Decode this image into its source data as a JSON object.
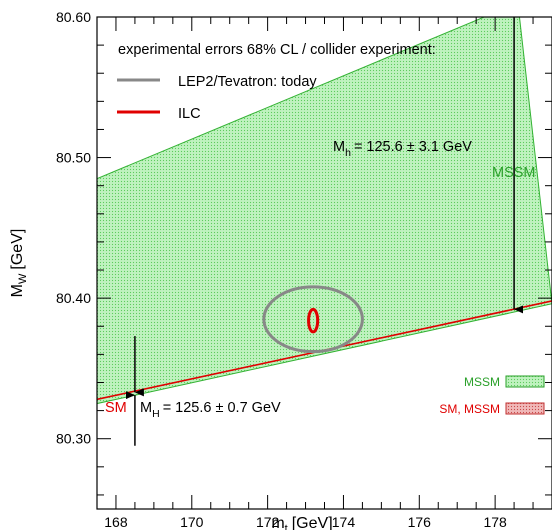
{
  "chart_data": {
    "type": "area",
    "xlabel": "m",
    "xlabel_sub": "t",
    "xlabel_unit": "[GeV]",
    "ylabel": "M",
    "ylabel_sub": "W",
    "ylabel_unit": "[GeV]",
    "xlim": [
      167.5,
      179.5
    ],
    "ylim": [
      80.25,
      80.6
    ],
    "x_ticks": [
      168,
      170,
      172,
      174,
      176,
      178
    ],
    "x_tick_labels": [
      "168",
      "170",
      "172",
      "174",
      "176",
      "178"
    ],
    "y_ticks": [
      80.3,
      80.4,
      80.5,
      80.6
    ],
    "y_tick_labels": [
      "80.30",
      "80.40",
      "80.50",
      "80.60"
    ],
    "grid": false,
    "legend_title": "experimental errors 68% CL / collider experiment:",
    "legend": [
      {
        "label": "LEP2/Tevatron: today",
        "color": "#808080"
      },
      {
        "label": "ILC",
        "color": "#e00000"
      }
    ],
    "band_legend": [
      {
        "label": "MSSM",
        "color": "#2aa02a",
        "fill": "#b8f0b8"
      },
      {
        "label": "SM, MSSM",
        "color": "#e00000",
        "fill": "#e8a0a0"
      }
    ],
    "mssm_band": {
      "upper": [
        [
          167.5,
          80.485
        ],
        [
          178.6,
          80.61
        ]
      ],
      "lower": [
        [
          167.5,
          80.325
        ],
        [
          179.5,
          80.396
        ]
      ]
    },
    "sm_line": [
      [
        167.5,
        80.328
      ],
      [
        179.5,
        80.398
      ]
    ],
    "ellipses": [
      {
        "name": "LEP2/Tevatron: today",
        "cx": 173.2,
        "cy": 80.385,
        "rx": 1.3,
        "ry": 0.023,
        "color": "#808080"
      },
      {
        "name": "ILC",
        "cx": 173.2,
        "cy": 80.384,
        "rx": 0.12,
        "ry": 0.008,
        "color": "#e00000"
      }
    ],
    "annotations": {
      "mssm_mh": "M",
      "mssm_mh_sub": "h",
      "mssm_mh_value": "= 125.6 ± 3.1 GeV",
      "mssm_label": "MSSM",
      "sm_label": "SM",
      "sm_mh": "M",
      "sm_mh_sub": "H",
      "sm_mh_value": "= 125.6 ± 0.7 GeV"
    },
    "arrows": [
      {
        "x": 178.5,
        "y_from": 80.61,
        "y_to": 80.392
      },
      {
        "x": 168.5,
        "y_from": 80.373,
        "y_to": 80.333
      },
      {
        "x": 168.5,
        "y_from": 80.295,
        "y_to": 80.331
      }
    ]
  }
}
